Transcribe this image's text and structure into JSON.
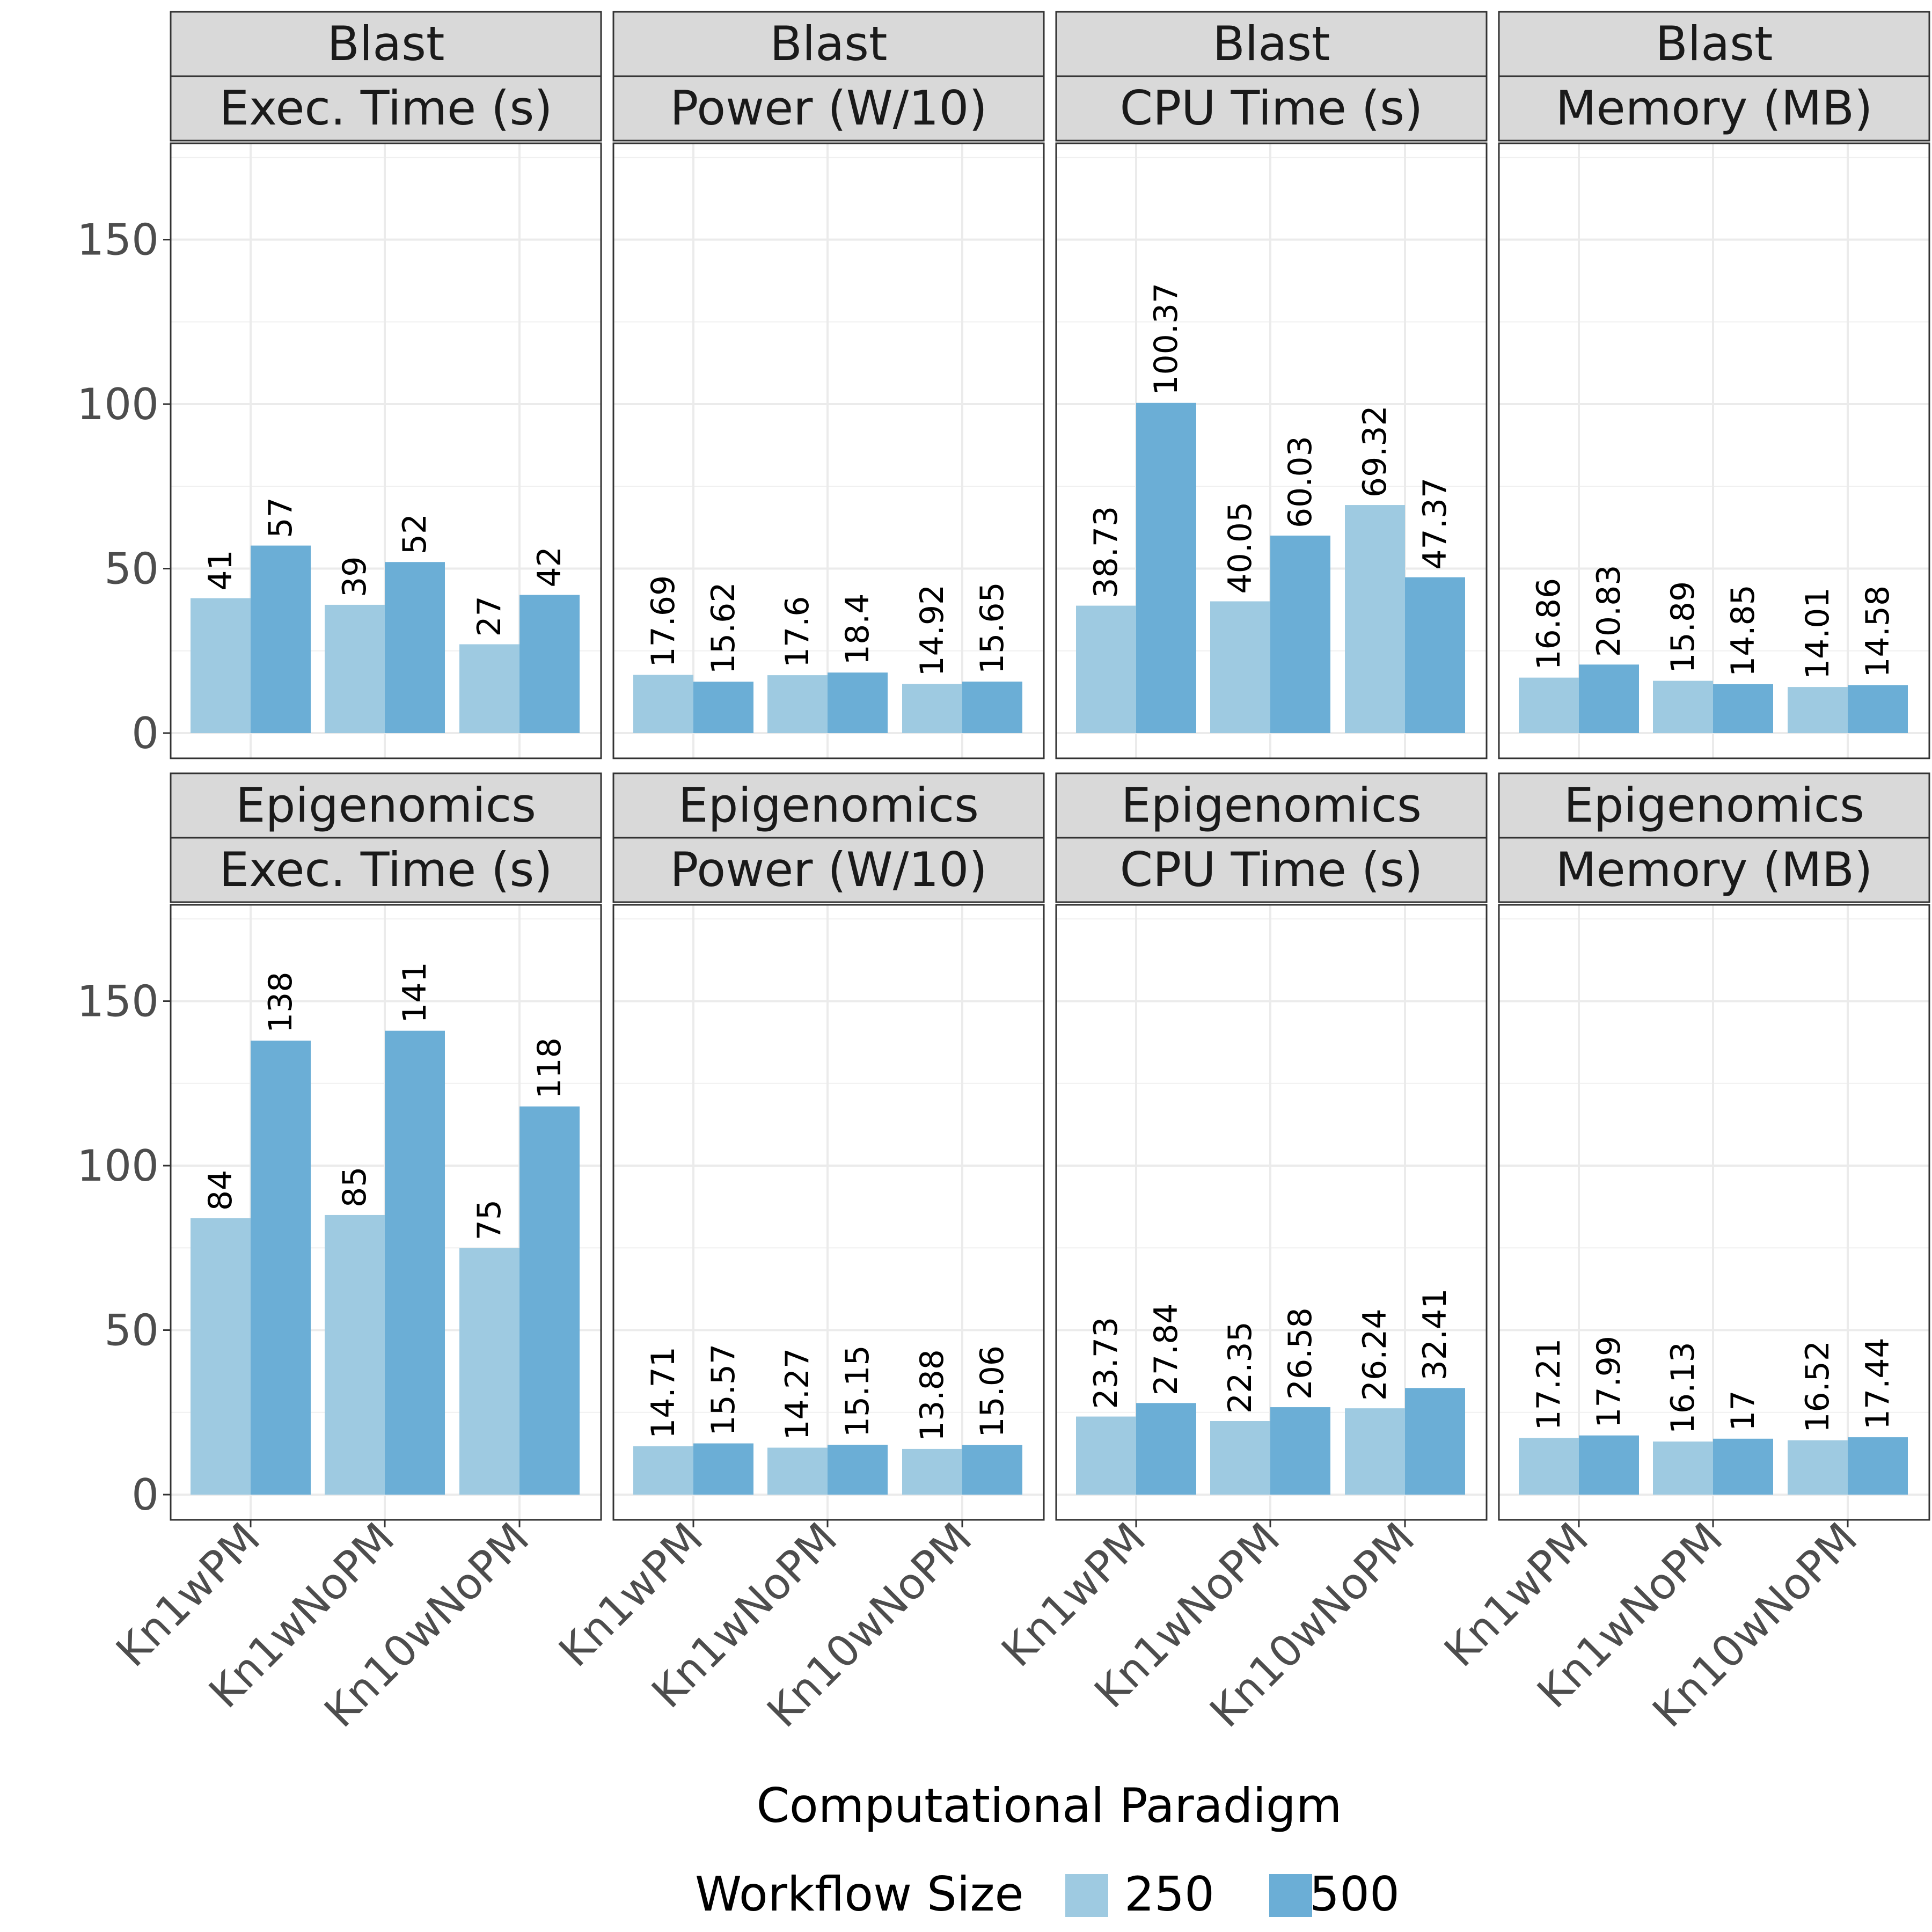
{
  "chart_data": {
    "type": "bar",
    "categories": [
      "Kn1wPM",
      "Kn1wNoPM",
      "Kn10wNoPM"
    ],
    "xlabel": "Computational Paradigm",
    "ylim": [
      0,
      180
    ],
    "yticks": [
      0,
      50,
      100,
      150
    ],
    "grid": true,
    "legend": {
      "title": "Workflow Size",
      "position": "bottom",
      "entries": [
        {
          "label": "250",
          "color": "#9ecae1"
        },
        {
          "label": "500",
          "color": "#6baed6"
        }
      ]
    },
    "panels": [
      {
        "workflow": "Blast",
        "metric": "Exec. Time (s)",
        "series": [
          {
            "name": "250",
            "values": [
              41,
              39,
              27
            ],
            "labels": [
              "41",
              "39",
              "27"
            ]
          },
          {
            "name": "500",
            "values": [
              57,
              52,
              42
            ],
            "labels": [
              "57",
              "52",
              "42"
            ]
          }
        ]
      },
      {
        "workflow": "Blast",
        "metric": "Power (W/10)",
        "series": [
          {
            "name": "250",
            "values": [
              17.69,
              17.6,
              14.92
            ],
            "labels": [
              "17.69",
              "17.6",
              "14.92"
            ]
          },
          {
            "name": "500",
            "values": [
              15.62,
              18.4,
              15.65
            ],
            "labels": [
              "15.62",
              "18.4",
              "15.65"
            ]
          }
        ]
      },
      {
        "workflow": "Blast",
        "metric": "CPU Time (s)",
        "series": [
          {
            "name": "250",
            "values": [
              38.73,
              40.05,
              69.32
            ],
            "labels": [
              "38.73",
              "40.05",
              "69.32"
            ]
          },
          {
            "name": "500",
            "values": [
              100.37,
              60.03,
              47.37
            ],
            "labels": [
              "100.37",
              "60.03",
              "47.37"
            ]
          }
        ]
      },
      {
        "workflow": "Blast",
        "metric": "Memory (MB)",
        "series": [
          {
            "name": "250",
            "values": [
              16.86,
              15.89,
              14.01
            ],
            "labels": [
              "16.86",
              "15.89",
              "14.01"
            ]
          },
          {
            "name": "500",
            "values": [
              20.83,
              14.85,
              14.58
            ],
            "labels": [
              "20.83",
              "14.85",
              "14.58"
            ]
          }
        ]
      },
      {
        "workflow": "Epigenomics",
        "metric": "Exec. Time (s)",
        "series": [
          {
            "name": "250",
            "values": [
              84,
              85,
              75
            ],
            "labels": [
              "84",
              "85",
              "75"
            ]
          },
          {
            "name": "500",
            "values": [
              138,
              141,
              118
            ],
            "labels": [
              "138",
              "141",
              "118"
            ]
          }
        ]
      },
      {
        "workflow": "Epigenomics",
        "metric": "Power (W/10)",
        "series": [
          {
            "name": "250",
            "values": [
              14.71,
              14.27,
              13.88
            ],
            "labels": [
              "14.71",
              "14.27",
              "13.88"
            ]
          },
          {
            "name": "500",
            "values": [
              15.57,
              15.15,
              15.06
            ],
            "labels": [
              "15.57",
              "15.15",
              "15.06"
            ]
          }
        ]
      },
      {
        "workflow": "Epigenomics",
        "metric": "CPU Time (s)",
        "series": [
          {
            "name": "250",
            "values": [
              23.73,
              22.35,
              26.24
            ],
            "labels": [
              "23.73",
              "22.35",
              "26.24"
            ]
          },
          {
            "name": "500",
            "values": [
              27.84,
              26.58,
              32.41
            ],
            "labels": [
              "27.84",
              "26.58",
              "32.41"
            ]
          }
        ]
      },
      {
        "workflow": "Epigenomics",
        "metric": "Memory (MB)",
        "series": [
          {
            "name": "250",
            "values": [
              17.21,
              16.13,
              16.52
            ],
            "labels": [
              "17.21",
              "16.13",
              "16.52"
            ]
          },
          {
            "name": "500",
            "values": [
              17.99,
              17,
              17.44
            ],
            "labels": [
              "17.99",
              "17",
              "17.44"
            ]
          }
        ]
      }
    ]
  }
}
